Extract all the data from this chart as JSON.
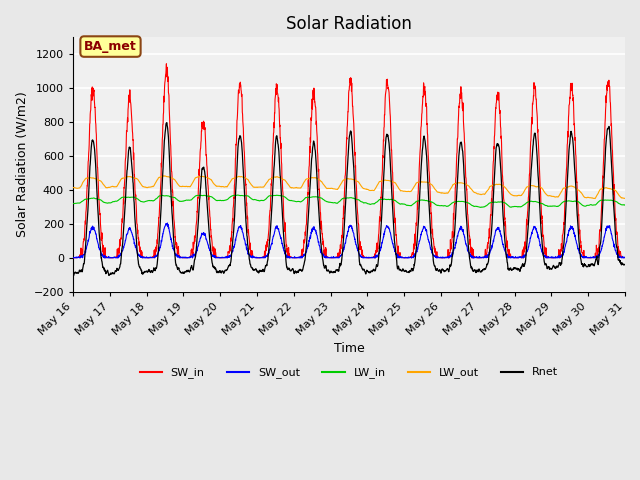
{
  "title": "Solar Radiation",
  "ylabel": "Solar Radiation (W/m2)",
  "xlabel": "Time",
  "annotation": "BA_met",
  "ylim": [
    -200,
    1300
  ],
  "yticks": [
    -200,
    0,
    200,
    400,
    600,
    800,
    1000,
    1200
  ],
  "start_day": 16,
  "end_day": 31,
  "n_days": 15,
  "pts_per_day": 144,
  "colors": {
    "SW_in": "#FF0000",
    "SW_out": "#0000FF",
    "LW_in": "#00CC00",
    "LW_out": "#FFA500",
    "Rnet": "#000000"
  },
  "legend_labels": [
    "SW_in",
    "SW_out",
    "LW_in",
    "LW_out",
    "Rnet"
  ],
  "background_color": "#E8E8E8",
  "axes_face_color": "#F0F0F0",
  "grid_color": "#FFFFFF",
  "annotation_bg": "#FFFF99",
  "annotation_border": "#8B4513"
}
